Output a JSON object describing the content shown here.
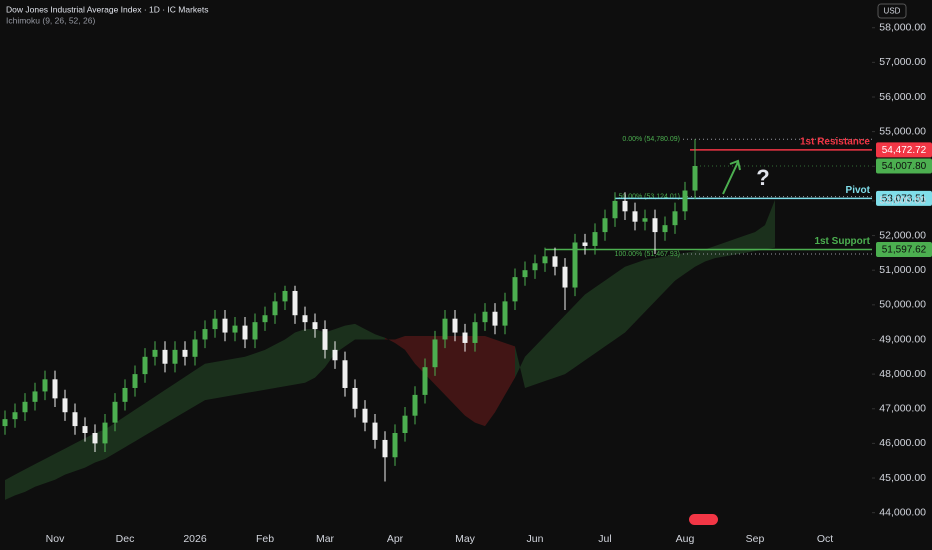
{
  "chart_data": {
    "type": "candlestick",
    "title": "Dow Jones Industrial Average Index · 1D · IC Markets",
    "subtitle": "Ichimoku (9, 26, 52, 26)",
    "currency": "USD",
    "categories": [
      null,
      null,
      null,
      null,
      null,
      "Nov",
      null,
      null,
      null,
      null,
      null,
      null,
      "Dec",
      null,
      null,
      null,
      null,
      null,
      null,
      "2026",
      null,
      null,
      null,
      null,
      null,
      null,
      "Feb",
      null,
      null,
      null,
      null,
      null,
      "Mar",
      null,
      null,
      null,
      null,
      null,
      null,
      "Apr",
      null,
      null,
      null,
      null,
      null,
      null,
      "May",
      null,
      null,
      null,
      null,
      null,
      null,
      "Jun",
      null,
      null,
      null,
      null,
      null,
      null,
      "Jul",
      null,
      null,
      null,
      null,
      null,
      null,
      null,
      "Aug",
      null,
      null,
      null,
      null,
      null,
      null,
      "Sep",
      null,
      null,
      null,
      null,
      null,
      null,
      "Oct"
    ],
    "open": [
      46500,
      46700,
      46900,
      47200,
      47500,
      47850,
      47300,
      46900,
      46500,
      46300,
      46000,
      46600,
      47200,
      47600,
      48000,
      48500,
      48700,
      48300,
      48700,
      48500,
      49000,
      49300,
      49600,
      49200,
      49400,
      49000,
      49500,
      49700,
      50100,
      50400,
      49700,
      49500,
      49300,
      48700,
      48400,
      47600,
      47000,
      46600,
      46100,
      45600,
      46300,
      46800,
      47400,
      48200,
      49000,
      49600,
      49200,
      48900,
      49500,
      49800,
      49400,
      50100,
      50800,
      51000,
      51200,
      51400,
      51100,
      50500,
      51800,
      51700,
      52100,
      52500,
      53000,
      52700,
      52400,
      52500,
      52100,
      52300,
      52700,
      53300,
      null,
      null,
      null,
      null,
      null,
      null,
      null,
      null,
      null,
      null,
      null,
      null,
      null
    ],
    "high": [
      46950,
      47150,
      47450,
      47750,
      48100,
      48100,
      47550,
      47150,
      46750,
      46550,
      46850,
      47450,
      47850,
      48250,
      48750,
      48950,
      48950,
      48950,
      48950,
      49250,
      49550,
      49850,
      49850,
      49650,
      49650,
      49750,
      49950,
      50350,
      50550,
      50550,
      49950,
      49750,
      49550,
      48950,
      48650,
      47850,
      47250,
      46850,
      46350,
      46550,
      47050,
      47650,
      48450,
      49250,
      49850,
      49850,
      49450,
      49750,
      50050,
      50050,
      50350,
      51050,
      51250,
      51450,
      51650,
      51650,
      51350,
      52050,
      52050,
      52350,
      52750,
      53250,
      53250,
      52950,
      52750,
      52750,
      52550,
      52950,
      53550,
      54780.09,
      null,
      null,
      null,
      null,
      null,
      null,
      null,
      null,
      null,
      null,
      null,
      null,
      null
    ],
    "low": [
      46250,
      46450,
      46650,
      46950,
      47250,
      47050,
      46650,
      46250,
      46050,
      45750,
      45750,
      46350,
      46950,
      47350,
      47750,
      48250,
      48050,
      48050,
      48250,
      48250,
      48750,
      49050,
      48950,
      48950,
      48750,
      48750,
      49250,
      49450,
      49850,
      49450,
      49250,
      49050,
      48450,
      48150,
      47350,
      46750,
      46350,
      45850,
      44900,
      45350,
      46050,
      46550,
      47150,
      47950,
      48750,
      48950,
      48650,
      48650,
      49250,
      49150,
      49150,
      49850,
      50550,
      50750,
      50950,
      50850,
      49850,
      50250,
      51450,
      51450,
      51850,
      52250,
      52450,
      52150,
      52150,
      51467.93,
      51850,
      52050,
      52450,
      53050,
      null,
      null,
      null,
      null,
      null,
      null,
      null,
      null,
      null,
      null,
      null,
      null,
      null
    ],
    "close": [
      46700,
      46900,
      47200,
      47500,
      47850,
      47300,
      46900,
      46500,
      46300,
      46000,
      46600,
      47200,
      47600,
      48000,
      48500,
      48700,
      48300,
      48700,
      48500,
      49000,
      49300,
      49600,
      49200,
      49400,
      49000,
      49500,
      49700,
      50100,
      50400,
      49700,
      49500,
      49300,
      48700,
      48400,
      47600,
      47000,
      46600,
      46100,
      45600,
      46300,
      46800,
      47400,
      48200,
      49000,
      49600,
      49200,
      48900,
      49500,
      49800,
      49400,
      50100,
      50800,
      51000,
      51200,
      51400,
      51100,
      50500,
      51800,
      51700,
      52100,
      52500,
      53000,
      52700,
      52400,
      52500,
      52100,
      52300,
      52700,
      53300,
      54007.8,
      null,
      null,
      null,
      null,
      null,
      null,
      null,
      null,
      null,
      null,
      null,
      null,
      null
    ],
    "up_color": "#4caf50",
    "down_color": "#f0f0f0",
    "cloud": {
      "span_a": [
        44940,
        45100,
        45250,
        45400,
        45550,
        45700,
        45850,
        46000,
        46150,
        46300,
        46400,
        46590,
        46780,
        46970,
        47160,
        47350,
        47540,
        47730,
        47920,
        48110,
        48300,
        48350,
        48400,
        48450,
        48500,
        48600,
        48700,
        48850,
        49000,
        49200,
        49300,
        49300,
        49200,
        49300,
        49400,
        49450,
        49300,
        49150,
        49050,
        48900,
        48700,
        48300,
        48000,
        47700,
        47400,
        47100,
        46800,
        46600,
        46500,
        46900,
        47400,
        47900,
        48500,
        48800,
        49100,
        49400,
        49700,
        50000,
        50300,
        50500,
        50700,
        50900,
        51100,
        51200,
        51300,
        51350,
        51400,
        51450,
        51500,
        51550,
        51600,
        51700,
        51800,
        51900,
        52000,
        52100,
        52300,
        53030,
        null,
        null,
        null,
        null,
        null
      ],
      "span_b": [
        44370,
        44500,
        44600,
        44750,
        44850,
        44950,
        45100,
        45200,
        45300,
        45450,
        45550,
        45720,
        45890,
        46060,
        46230,
        46400,
        46570,
        46740,
        46910,
        47080,
        47250,
        47300,
        47350,
        47400,
        47450,
        47500,
        47550,
        47600,
        47650,
        47700,
        47750,
        47900,
        48200,
        48600,
        48800,
        49000,
        49000,
        49000,
        49000,
        49000,
        49100,
        49100,
        49100,
        49100,
        49100,
        49100,
        49100,
        49100,
        49100,
        49000,
        48900,
        48800,
        47600,
        47700,
        47800,
        47900,
        48000,
        48200,
        48400,
        48600,
        48800,
        49000,
        49200,
        49500,
        49800,
        50100,
        50400,
        50700,
        50900,
        51100,
        51250,
        51350,
        51400,
        51450,
        51500,
        51550,
        51600,
        51650,
        null,
        null,
        null,
        null,
        null
      ],
      "bull_color": "rgba(76,175,80,0.22)",
      "bear_color": "rgba(200,40,40,0.28)"
    },
    "ylim": [
      43500,
      58800
    ],
    "yticks": [
      {
        "value": 44000,
        "label": "44,000.00"
      },
      {
        "value": 45000,
        "label": "45,000.00"
      },
      {
        "value": 46000,
        "label": "46,000.00"
      },
      {
        "value": 47000,
        "label": "47,000.00"
      },
      {
        "value": 48000,
        "label": "48,000.00"
      },
      {
        "value": 49000,
        "label": "49,000.00"
      },
      {
        "value": 50000,
        "label": "50,000.00"
      },
      {
        "value": 51000,
        "label": "51,000.00"
      },
      {
        "value": 52000,
        "label": "52,000.00"
      },
      {
        "value": 53000,
        "label": "53,000.00"
      },
      {
        "value": 54000,
        "label": "54,000.00"
      },
      {
        "value": 55000,
        "label": "55,000.00"
      },
      {
        "value": 56000,
        "label": "56,000.00"
      },
      {
        "value": 57000,
        "label": "57,000.00"
      },
      {
        "value": 58000,
        "label": "58,000.00"
      }
    ],
    "grid": false,
    "levels": [
      {
        "label": "1st Resistance",
        "value": 54472.72,
        "value_label": "54,472.72",
        "color": "#f23645"
      },
      {
        "label": "Pivot",
        "value": 53073.51,
        "value_label": "53,073.51",
        "color": "#80deea"
      },
      {
        "label": "1st Support",
        "value": 51597.62,
        "value_label": "51,597.62",
        "color": "#4caf50"
      }
    ],
    "last_price": {
      "value": 54007.8,
      "label": "54,007.80",
      "color": "#4caf50"
    },
    "fib_levels": [
      {
        "value": 54780.09,
        "label": "0.00% (54,780.09)"
      },
      {
        "value": 53124.01,
        "label": "50.00% (53,124.01)"
      },
      {
        "value": 51467.93,
        "label": "100.00% (51,467.93)"
      }
    ],
    "annotation": "?"
  }
}
